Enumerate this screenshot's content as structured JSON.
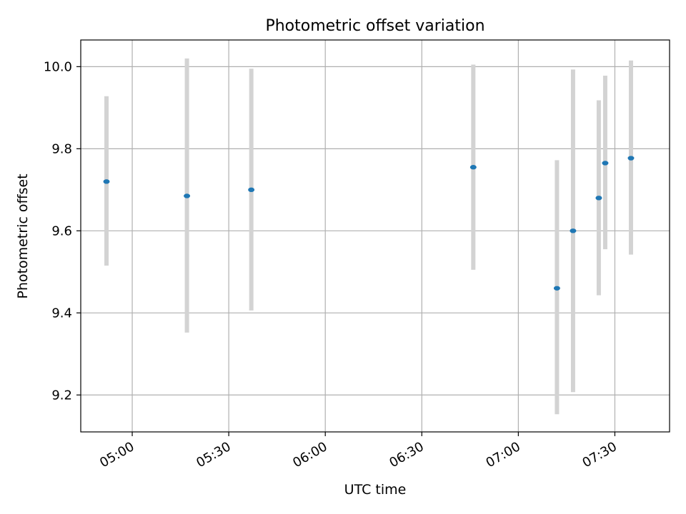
{
  "chart_data": {
    "type": "scatter",
    "title": "Photometric offset variation",
    "xlabel": "UTC time",
    "ylabel": "Photometric offset",
    "x_unit": "HH:MM",
    "xlim": [
      "04:44",
      "07:47"
    ],
    "ylim": [
      9.11,
      10.065
    ],
    "x_ticks": [
      "05:00",
      "05:30",
      "06:00",
      "06:30",
      "07:00",
      "07:30"
    ],
    "y_ticks": [
      9.2,
      9.4,
      9.6,
      9.8,
      10.0
    ],
    "y_tick_labels": [
      "9.2",
      "9.4",
      "9.6",
      "9.8",
      "10.0"
    ],
    "grid": true,
    "series": [
      {
        "x": [
          "04:52",
          "05:17",
          "05:37",
          "06:46",
          "07:12",
          "07:17",
          "07:25",
          "07:27",
          "07:35"
        ],
        "y": [
          9.72,
          9.685,
          9.7,
          9.755,
          9.46,
          9.6,
          9.68,
          9.765,
          9.777
        ],
        "y_low": [
          9.515,
          9.352,
          9.406,
          9.505,
          9.153,
          9.207,
          9.443,
          9.555,
          9.542
        ],
        "y_high": [
          9.928,
          10.02,
          9.995,
          10.005,
          9.772,
          9.993,
          9.918,
          9.978,
          10.015
        ]
      }
    ],
    "colors": {
      "marker": "#1f77b4",
      "errorbar": "#d3d3d3",
      "grid": "#b0b0b0",
      "axes": "#000000"
    }
  }
}
